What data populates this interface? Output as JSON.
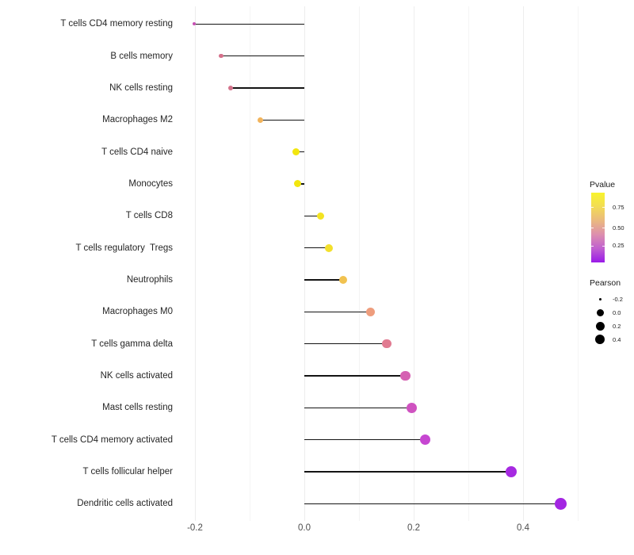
{
  "chart_data": {
    "type": "scatter",
    "variant": "lollipop",
    "title": "",
    "xlabel": "",
    "ylabel": "",
    "categories": [
      "T cells CD4 memory resting",
      "B cells memory",
      "NK cells resting",
      "Macrophages M2",
      "T cells CD4 naive",
      "Monocytes",
      "T cells CD8",
      "T cells regulatory  Tregs",
      "Neutrophils",
      "Macrophages M0",
      "T cells gamma delta",
      "NK cells activated",
      "Mast cells resting",
      "T cells CD4 memory activated",
      "T cells follicular helper",
      "Dendritic cells activated"
    ],
    "series": [
      {
        "name": "Pearson",
        "values": [
          -0.201,
          -0.152,
          -0.135,
          -0.08,
          -0.015,
          -0.013,
          0.03,
          0.045,
          0.071,
          0.121,
          0.151,
          0.185,
          0.196,
          0.221,
          0.378,
          0.469
        ]
      }
    ],
    "points": [
      {
        "label": "T cells CD4 memory resting",
        "pearson": -0.201,
        "color": "#c750b4",
        "size": 4
      },
      {
        "label": "B cells memory",
        "pearson": -0.152,
        "color": "#d5708a",
        "size": 5.5
      },
      {
        "label": "NK cells resting",
        "pearson": -0.135,
        "color": "#d4738c",
        "size": 6
      },
      {
        "label": "Macrophages M2",
        "pearson": -0.08,
        "color": "#f2b45c",
        "size": 7
      },
      {
        "label": "T cells CD4 naive",
        "pearson": -0.015,
        "color": "#f2e60e",
        "size": 9
      },
      {
        "label": "Monocytes",
        "pearson": -0.013,
        "color": "#f2e60e",
        "size": 9
      },
      {
        "label": "T cells CD8",
        "pearson": 0.03,
        "color": "#f3e322",
        "size": 9.5
      },
      {
        "label": "T cells regulatory  Tregs",
        "pearson": 0.045,
        "color": "#f3e02c",
        "size": 10
      },
      {
        "label": "Neutrophils",
        "pearson": 0.071,
        "color": "#f1c250",
        "size": 10
      },
      {
        "label": "Macrophages M0",
        "pearson": 0.121,
        "color": "#ee9d7d",
        "size": 11
      },
      {
        "label": "T cells gamma delta",
        "pearson": 0.151,
        "color": "#e17b91",
        "size": 11.5
      },
      {
        "label": "NK cells activated",
        "pearson": 0.185,
        "color": "#d561b2",
        "size": 12.5
      },
      {
        "label": "Mast cells resting",
        "pearson": 0.196,
        "color": "#cf52c0",
        "size": 13
      },
      {
        "label": "T cells CD4 memory activated",
        "pearson": 0.221,
        "color": "#c646d1",
        "size": 13
      },
      {
        "label": "T cells follicular helper",
        "pearson": 0.378,
        "color": "#a62ae1",
        "size": 14.5
      },
      {
        "label": "Dendritic cells activated",
        "pearson": 0.469,
        "color": "#a326e2",
        "size": 15.5
      }
    ],
    "x_axis": {
      "range": [
        -0.235,
        0.505
      ],
      "ticks": [
        {
          "value": -0.2,
          "label": "-0.2"
        },
        {
          "value": 0.0,
          "label": "0.0"
        },
        {
          "value": 0.2,
          "label": "0.2"
        },
        {
          "value": 0.4,
          "label": "0.4"
        }
      ],
      "gridlines": [
        {
          "value": -0.2,
          "major": true
        },
        {
          "value": -0.1,
          "major": false
        },
        {
          "value": 0.0,
          "major": true
        },
        {
          "value": 0.1,
          "major": false
        },
        {
          "value": 0.2,
          "major": true
        },
        {
          "value": 0.3,
          "major": false
        },
        {
          "value": 0.4,
          "major": true
        },
        {
          "value": 0.5,
          "major": false
        }
      ]
    },
    "grid": "vertical gridlines only, light gray, white background",
    "legend_position": "right",
    "legends": {
      "pvalue": {
        "title": "Pvalue",
        "gradient_top_to_bottom": [
          "#f8f42c",
          "#f2dc55",
          "#eab97f",
          "#dd8fae",
          "#c060cf",
          "#9a1ae8"
        ],
        "ticks": [
          {
            "label": "0.75",
            "frac_from_top": 0.21
          },
          {
            "label": "0.50",
            "frac_from_top": 0.5
          },
          {
            "label": "0.25",
            "frac_from_top": 0.76
          }
        ]
      },
      "pearson": {
        "title": "Pearson",
        "items": [
          {
            "label": "-0.2",
            "size": 3
          },
          {
            "label": "0.0",
            "size": 9
          },
          {
            "label": "0.2",
            "size": 11
          },
          {
            "label": "0.4",
            "size": 12.5
          }
        ]
      }
    }
  }
}
